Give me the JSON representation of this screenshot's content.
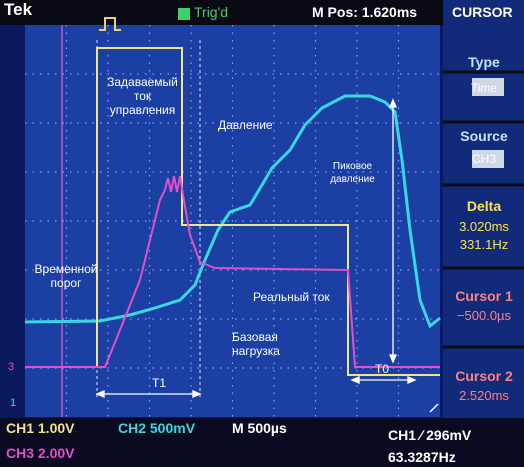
{
  "header": {
    "brand": "Tek",
    "trigger_state": "Trig'd",
    "position": "M Pos: 1.620ms",
    "menu": "CURSOR"
  },
  "menu": {
    "type": {
      "label": "Type",
      "value": "Time"
    },
    "source": {
      "label": "Source",
      "value": "CH3"
    },
    "delta": {
      "label": "Delta",
      "time": "3.020ms",
      "frequency": "331.1Hz"
    },
    "cursor1": {
      "label": "Cursor 1",
      "value": "−500.0µs"
    },
    "cursor2": {
      "label": "Cursor 2",
      "value": "2.520ms"
    }
  },
  "status": {
    "ch1": "CH1 1.00V",
    "ch2": "CH2 500mV",
    "timebase": "M 500µs",
    "trigger": "CH1 ∕ 296mV",
    "ch3": "CH3 2.00V",
    "frequency": "63.3287Hz"
  },
  "annotations": {
    "control_current": "Задаваемый ток управления",
    "pressure": "Давление",
    "peak_pressure": "Пиковое давление",
    "time_threshold": "Временной порог",
    "real_current": "Реальный ток",
    "base_load": "Базовая нагрузка",
    "t1": "T1",
    "t0": "T0"
  },
  "markers": {
    "ch3": "3",
    "ch1": "1"
  }
}
